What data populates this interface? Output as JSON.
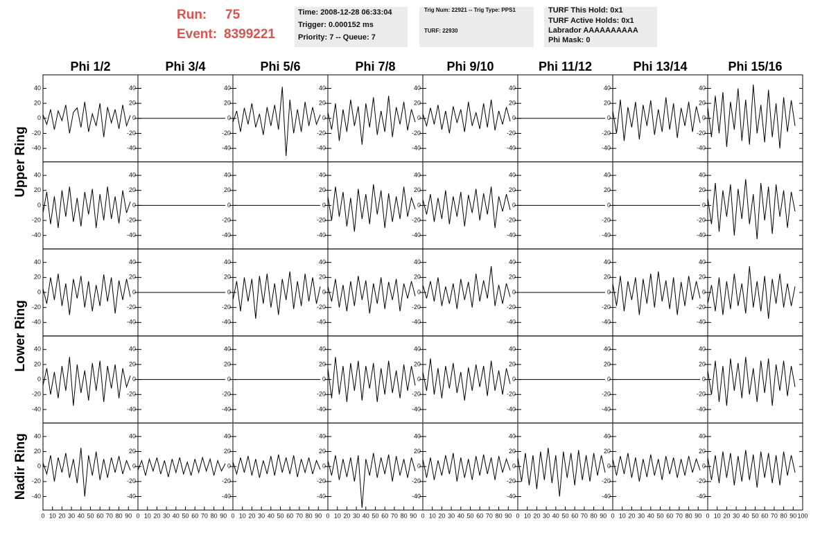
{
  "header": {
    "run_label": "Run:",
    "run": 75,
    "event_label": "Event:",
    "event": 8399221,
    "boxes": [
      [
        "Time: 2008-12-28 06:33:04",
        "Trigger: 0.000152 ms",
        "Priority: 7 -- Queue: 7"
      ],
      [
        "Trig Num: 22921 -- Trig Type: PPS1",
        "TURF: 22930"
      ],
      [
        "TURF This Hold: 0x1",
        "TURF Active Holds: 0x1",
        "Labrador AAAAAAAAAA",
        "Phi Mask: 0"
      ]
    ]
  },
  "chart_data": {
    "type": "line",
    "color": "#000000",
    "columns": [
      "Phi 1/2",
      "Phi 3/4",
      "Phi 5/6",
      "Phi 7/8",
      "Phi 9/10",
      "Phi 11/12",
      "Phi 13/14",
      "Phi 15/16"
    ],
    "row_groups": [
      "Upper Ring",
      "Lower Ring",
      "Nadir Ring"
    ],
    "xlim": [
      0,
      100
    ],
    "xticks": [
      0,
      10,
      20,
      30,
      40,
      50,
      60,
      70,
      80,
      90,
      100
    ],
    "ylim": [
      -58,
      58
    ],
    "yticks": [
      40,
      20,
      0,
      -20,
      -40
    ],
    "x": [
      0,
      4,
      8,
      12,
      16,
      20,
      24,
      28,
      32,
      36,
      40,
      44,
      48,
      52,
      56,
      60,
      64,
      68,
      72,
      76,
      80,
      84,
      88,
      92
    ],
    "panels": [
      [
        [
          5,
          -8,
          12,
          -15,
          10,
          -3,
          18,
          -20,
          8,
          14,
          -12,
          22,
          -18,
          6,
          -10,
          20,
          -25,
          15,
          -6,
          12,
          -14,
          18,
          -10,
          4
        ],
        [
          0,
          0,
          0,
          0,
          0,
          0,
          0,
          0,
          0,
          0,
          0,
          0,
          0,
          0,
          0,
          0,
          0,
          0,
          0,
          0,
          0,
          0,
          0,
          0
        ],
        [
          -5,
          10,
          -18,
          14,
          -8,
          20,
          -12,
          6,
          -22,
          15,
          -10,
          18,
          -15,
          42,
          -50,
          25,
          -20,
          12,
          -18,
          22,
          -10,
          15,
          -8,
          5
        ],
        [
          8,
          -15,
          20,
          -30,
          12,
          -18,
          25,
          -10,
          16,
          -35,
          20,
          -12,
          28,
          -22,
          10,
          -18,
          30,
          -25,
          15,
          -8,
          22,
          -16,
          12,
          -5
        ],
        [
          6,
          -10,
          14,
          -8,
          18,
          -15,
          10,
          -20,
          16,
          -6,
          12,
          -18,
          22,
          -10,
          8,
          -14,
          20,
          -12,
          25,
          -16,
          10,
          -8,
          15,
          -4
        ],
        [
          0,
          0,
          0,
          0,
          0,
          0,
          0,
          0,
          0,
          0,
          0,
          0,
          0,
          0,
          0,
          0,
          0,
          0,
          0,
          0,
          0,
          0,
          0,
          0
        ],
        [
          10,
          -20,
          25,
          -30,
          15,
          -12,
          22,
          -28,
          18,
          -10,
          24,
          -22,
          12,
          -18,
          28,
          -15,
          20,
          -26,
          14,
          -10,
          22,
          -18,
          16,
          -6
        ],
        [
          15,
          -25,
          30,
          -20,
          35,
          -38,
          22,
          -15,
          40,
          -30,
          25,
          -35,
          45,
          -20,
          18,
          -32,
          38,
          -25,
          20,
          -40,
          28,
          -18,
          24,
          -10
        ]
      ],
      [
        [
          -10,
          18,
          -25,
          12,
          -30,
          20,
          -15,
          25,
          -22,
          10,
          -28,
          18,
          -12,
          22,
          -30,
          15,
          -20,
          25,
          -18,
          12,
          -24,
          20,
          -10,
          5
        ],
        [
          0,
          0,
          0,
          0,
          0,
          0,
          0,
          0,
          0,
          0,
          0,
          0,
          0,
          0,
          0,
          0,
          0,
          0,
          0,
          0,
          0,
          0,
          0,
          0
        ],
        [
          0,
          0,
          0,
          0,
          0,
          0,
          0,
          0,
          0,
          0,
          0,
          0,
          0,
          0,
          0,
          0,
          0,
          0,
          0,
          0,
          0,
          0,
          0,
          0
        ],
        [
          12,
          -20,
          25,
          -15,
          18,
          -28,
          10,
          -35,
          22,
          -18,
          15,
          -25,
          28,
          -12,
          20,
          -30,
          16,
          -22,
          12,
          -18,
          25,
          -15,
          10,
          -5
        ],
        [
          8,
          -12,
          15,
          -22,
          10,
          -18,
          20,
          -25,
          12,
          -15,
          18,
          -28,
          14,
          -10,
          22,
          -20,
          16,
          -12,
          25,
          -30,
          12,
          -8,
          15,
          -6
        ],
        [
          0,
          0,
          0,
          0,
          0,
          0,
          0,
          0,
          0,
          0,
          0,
          0,
          0,
          0,
          0,
          0,
          0,
          0,
          0,
          0,
          0,
          0,
          0,
          0
        ],
        [
          0,
          0,
          0,
          0,
          0,
          0,
          0,
          0,
          0,
          0,
          0,
          0,
          0,
          0,
          0,
          0,
          0,
          0,
          0,
          0,
          0,
          0,
          0,
          0
        ],
        [
          10,
          -25,
          30,
          -35,
          20,
          -15,
          28,
          -40,
          22,
          -18,
          35,
          -25,
          15,
          -45,
          30,
          -20,
          25,
          -38,
          28,
          -15,
          20,
          -30,
          18,
          -8
        ]
      ],
      [
        [
          5,
          -15,
          20,
          -10,
          25,
          -18,
          12,
          -30,
          18,
          -8,
          22,
          -20,
          15,
          -25,
          10,
          -18,
          24,
          -12,
          20,
          -28,
          16,
          -10,
          18,
          -6
        ],
        [
          0,
          0,
          0,
          0,
          0,
          0,
          0,
          0,
          0,
          0,
          0,
          0,
          0,
          0,
          0,
          0,
          0,
          0,
          0,
          0,
          0,
          0,
          0,
          0
        ],
        [
          -10,
          15,
          -25,
          20,
          -12,
          18,
          -35,
          22,
          -15,
          25,
          -20,
          12,
          -30,
          18,
          -10,
          28,
          -22,
          15,
          -18,
          25,
          -12,
          20,
          -15,
          8
        ],
        [
          8,
          -12,
          18,
          -20,
          10,
          -25,
          15,
          -18,
          22,
          -10,
          16,
          -28,
          12,
          -15,
          20,
          -22,
          14,
          -10,
          18,
          -25,
          12,
          -8,
          15,
          -5
        ],
        [
          10,
          -8,
          15,
          -12,
          20,
          -18,
          8,
          -15,
          12,
          -22,
          18,
          -10,
          14,
          -20,
          25,
          -12,
          16,
          -8,
          35,
          -18,
          10,
          -15,
          12,
          -6
        ],
        [
          0,
          0,
          0,
          0,
          0,
          0,
          0,
          0,
          0,
          0,
          0,
          0,
          0,
          0,
          0,
          0,
          0,
          0,
          0,
          0,
          0,
          0,
          0,
          0
        ],
        [
          12,
          -18,
          22,
          -25,
          15,
          -10,
          20,
          -30,
          18,
          -15,
          25,
          -20,
          28,
          -12,
          16,
          -22,
          20,
          -30,
          14,
          -18,
          22,
          -10,
          15,
          -8
        ],
        [
          -15,
          10,
          -25,
          20,
          -30,
          15,
          -22,
          25,
          -18,
          12,
          -28,
          35,
          -20,
          15,
          -25,
          22,
          -35,
          18,
          -15,
          25,
          -20,
          12,
          -18,
          8
        ]
      ],
      [
        [
          -8,
          15,
          -20,
          10,
          -25,
          18,
          -15,
          30,
          -35,
          20,
          -18,
          12,
          -28,
          22,
          -15,
          25,
          -30,
          18,
          -12,
          20,
          -25,
          15,
          -10,
          5
        ],
        [
          0,
          0,
          0,
          0,
          0,
          0,
          0,
          0,
          0,
          0,
          0,
          0,
          0,
          0,
          0,
          0,
          0,
          0,
          0,
          0,
          0,
          0,
          0,
          0
        ],
        [
          0,
          0,
          0,
          0,
          0,
          0,
          0,
          0,
          0,
          0,
          0,
          0,
          0,
          0,
          0,
          0,
          0,
          0,
          0,
          0,
          0,
          0,
          0,
          0
        ],
        [
          15,
          -25,
          30,
          -20,
          18,
          -30,
          22,
          -15,
          25,
          -28,
          18,
          -12,
          22,
          -30,
          15,
          -20,
          25,
          -18,
          12,
          -25,
          20,
          -15,
          18,
          -8
        ],
        [
          10,
          -15,
          28,
          -20,
          15,
          -25,
          18,
          -12,
          22,
          -18,
          10,
          -28,
          16,
          -15,
          20,
          -10,
          18,
          -22,
          25,
          -15,
          12,
          -20,
          15,
          -6
        ],
        [
          0,
          0,
          0,
          0,
          0,
          0,
          0,
          0,
          0,
          0,
          0,
          0,
          0,
          0,
          0,
          0,
          0,
          0,
          0,
          0,
          0,
          0,
          0,
          0
        ],
        [
          0,
          0,
          0,
          0,
          0,
          0,
          0,
          0,
          0,
          0,
          0,
          0,
          0,
          0,
          0,
          0,
          0,
          0,
          0,
          0,
          0,
          0,
          0,
          0
        ],
        [
          12,
          -20,
          25,
          -30,
          18,
          -35,
          28,
          -15,
          22,
          -25,
          30,
          -20,
          15,
          -30,
          25,
          -18,
          28,
          -35,
          20,
          -15,
          25,
          -22,
          18,
          -10
        ]
      ],
      [
        [
          5,
          -10,
          15,
          -20,
          12,
          -8,
          18,
          -15,
          10,
          -22,
          25,
          -40,
          15,
          -12,
          20,
          -18,
          10,
          -15,
          12,
          -8,
          14,
          -10,
          8,
          -5
        ],
        [
          -5,
          8,
          -12,
          10,
          -6,
          12,
          -10,
          8,
          -14,
          10,
          -8,
          12,
          -10,
          6,
          -12,
          10,
          -8,
          12,
          -6,
          10,
          -12,
          8,
          -6,
          4
        ],
        [
          6,
          -10,
          12,
          -8,
          14,
          -12,
          10,
          -15,
          8,
          -10,
          14,
          -12,
          16,
          -8,
          12,
          -10,
          15,
          -14,
          10,
          -8,
          12,
          -10,
          8,
          -4
        ],
        [
          8,
          -12,
          15,
          -18,
          10,
          -14,
          12,
          -20,
          15,
          -55,
          10,
          -12,
          18,
          -15,
          12,
          -10,
          16,
          -20,
          14,
          -12,
          10,
          -15,
          12,
          -6
        ],
        [
          10,
          -15,
          12,
          -18,
          8,
          -12,
          15,
          -10,
          18,
          -20,
          12,
          -15,
          10,
          -18,
          14,
          -12,
          16,
          -10,
          12,
          -18,
          14,
          -8,
          10,
          -5
        ],
        [
          12,
          -20,
          18,
          -25,
          15,
          -30,
          20,
          -18,
          25,
          -22,
          15,
          -40,
          20,
          -15,
          18,
          -25,
          22,
          -18,
          15,
          -20,
          18,
          -12,
          15,
          -8
        ],
        [
          10,
          -12,
          14,
          -10,
          18,
          -15,
          12,
          -20,
          10,
          -14,
          16,
          -12,
          10,
          -18,
          14,
          -10,
          12,
          -15,
          10,
          -12,
          14,
          -8,
          10,
          -5
        ],
        [
          12,
          -18,
          15,
          -22,
          20,
          -15,
          18,
          -25,
          14,
          -20,
          22,
          -18,
          16,
          -28,
          20,
          -15,
          18,
          -22,
          15,
          -25,
          20,
          -12,
          15,
          -8
        ]
      ]
    ]
  }
}
